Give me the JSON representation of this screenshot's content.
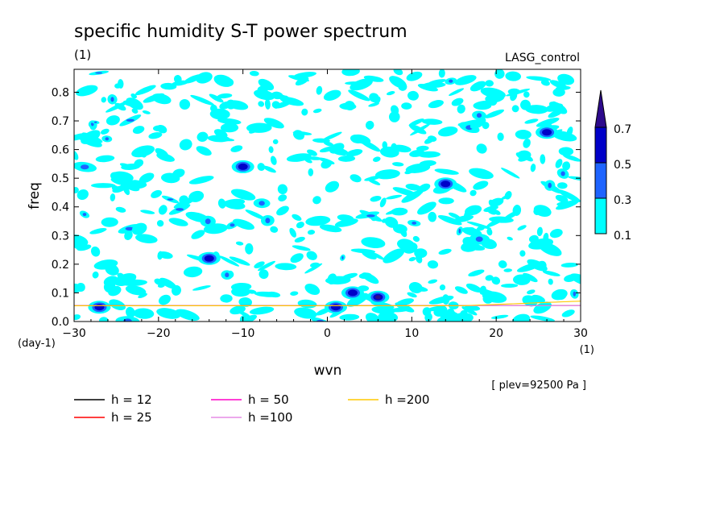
{
  "chart_data": {
    "type": "heatmap",
    "title": "specific humidity S-T power spectrum",
    "subtitle_units": "(1)",
    "label_right": "LASG_control",
    "xlabel": "wvn",
    "ylabel": "freq",
    "x_unit": "(1)",
    "y_unit": "(day-1)",
    "level_note": "[ plev=92500 Pa ]",
    "xlim": [
      -30,
      30
    ],
    "ylim": [
      0,
      0.88
    ],
    "x_ticks": [
      -30,
      -20,
      -10,
      0,
      10,
      20,
      30
    ],
    "y_ticks": [
      0.0,
      0.1,
      0.2,
      0.3,
      0.4,
      0.5,
      0.6,
      0.7,
      0.8
    ],
    "contour_levels": [
      0.1,
      0.3,
      0.5,
      0.7
    ],
    "colorbar_labels": [
      "0.1",
      "0.3",
      "0.5",
      "0.7"
    ],
    "contour_colors": [
      "#00ffff",
      "#1e64ff",
      "#0000c8",
      "#2d0a8c"
    ],
    "curves": [
      {
        "name": "h = 12",
        "h": 12,
        "color": "#000000"
      },
      {
        "name": "h = 25",
        "h": 25,
        "color": "#ff0000"
      },
      {
        "name": "h = 50",
        "h": 50,
        "color": "#ff00c8"
      },
      {
        "name": "h =100",
        "h": 100,
        "color": "#e68ce6"
      },
      {
        "name": "h =200",
        "h": 200,
        "color": "#ffc800"
      }
    ],
    "notable_peaks": [
      {
        "x": 6,
        "y": 0.085,
        "value": 0.7
      },
      {
        "x": 3,
        "y": 0.1,
        "value": 0.5
      },
      {
        "x": 1,
        "y": 0.05,
        "value": 0.5
      },
      {
        "x": 26,
        "y": 0.66,
        "value": 0.5
      },
      {
        "x": -14,
        "y": 0.22,
        "value": 0.5
      },
      {
        "x": -10,
        "y": 0.54,
        "value": 0.5
      },
      {
        "x": 14,
        "y": 0.48,
        "value": 0.5
      },
      {
        "x": -27,
        "y": 0.05,
        "value": 0.5
      }
    ]
  }
}
